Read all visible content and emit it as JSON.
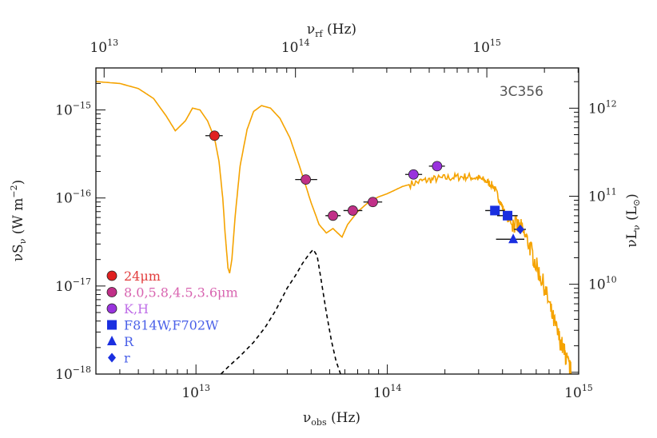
{
  "chart_data": {
    "type": "scatter",
    "object_label": "3C356",
    "x_bottom": {
      "label_prefix": "ν",
      "label_sub": "obs",
      "label_suffix": " (Hz)",
      "scale": "log",
      "range": [
        3000000000000.0,
        1000000000000000.0
      ],
      "ticks": [
        {
          "base": "10",
          "exp": "13",
          "value": 10000000000000.0
        },
        {
          "base": "10",
          "exp": "14",
          "value": 100000000000000.0
        },
        {
          "base": "10",
          "exp": "15",
          "value": 1000000000000000.0
        }
      ]
    },
    "x_top": {
      "label_prefix": "ν",
      "label_sub": "rf",
      "label_suffix": " (Hz)",
      "scale": "log",
      "ticks": [
        {
          "base": "10",
          "exp": "13",
          "value": 10000000000000.0
        },
        {
          "base": "10",
          "exp": "14",
          "value": 100000000000000.0
        },
        {
          "base": "10",
          "exp": "15",
          "value": 1000000000000000.0
        }
      ]
    },
    "y_left": {
      "label_prefix": "νS",
      "label_sub": "ν",
      "label_suffix": " (W m",
      "label_sup": "−2",
      "label_end": ")",
      "scale": "log",
      "range": [
        1e-18,
        3e-15
      ],
      "ticks": [
        {
          "base": "10",
          "exp": "−15",
          "value": 1e-15
        },
        {
          "base": "10",
          "exp": "−16",
          "value": 1e-16
        },
        {
          "base": "10",
          "exp": "−17",
          "value": 1e-17
        },
        {
          "base": "10",
          "exp": "−18",
          "value": 1e-18
        }
      ]
    },
    "y_right": {
      "label_prefix": "νL",
      "label_sub": "ν",
      "label_suffix": " (L",
      "label_sym": "⊙",
      "label_end": ")",
      "scale": "log",
      "ticks": [
        {
          "base": "10",
          "exp": "12",
          "value": 1000000000000.0
        },
        {
          "base": "10",
          "exp": "11",
          "value": 100000000000.0
        },
        {
          "base": "10",
          "exp": "10",
          "value": 10000000000.0
        }
      ]
    },
    "legend": [
      {
        "label": "24μm",
        "marker": "circle",
        "color": "#e02020"
      },
      {
        "label": "8.0,5.8,4.5,3.6μm",
        "marker": "circle",
        "color": "#c03088"
      },
      {
        "label": "K,H",
        "marker": "circle",
        "color": "#9933dd"
      },
      {
        "label": "F814W,F702W",
        "marker": "square",
        "color": "#1a2fe0"
      },
      {
        "label": "R",
        "marker": "triangle",
        "color": "#1a2fe0"
      },
      {
        "label": "r",
        "marker": "diamond",
        "color": "#1a2fe0"
      }
    ],
    "legend_text_colors": [
      "#e23c3c",
      "#d864b0",
      "#c070e8",
      "#4a60e8",
      "#4a60e8",
      "#4a60e8"
    ],
    "series": [
      {
        "name": "24μm",
        "marker": "circle",
        "color": "#e02020",
        "points": [
          {
            "x": 12500000000000.0,
            "y": 5.1e-16,
            "xerr": [
              11200000000000.0,
              13800000000000.0
            ]
          }
        ]
      },
      {
        "name": "8.0,5.8,4.5,3.6μm",
        "marker": "circle",
        "color": "#c03088",
        "points": [
          {
            "x": 37500000000000.0,
            "y": 1.62e-16,
            "xerr": [
              33000000000000.0,
              43000000000000.0
            ]
          },
          {
            "x": 52000000000000.0,
            "y": 6.3e-17,
            "xerr": [
              47500000000000.0,
              57000000000000.0
            ]
          },
          {
            "x": 66000000000000.0,
            "y": 7.2e-17,
            "xerr": [
              59000000000000.0,
              74000000000000.0
            ]
          },
          {
            "x": 84000000000000.0,
            "y": 9e-17,
            "xerr": [
              75000000000000.0,
              94000000000000.0
            ]
          }
        ]
      },
      {
        "name": "K,H",
        "marker": "circle",
        "color": "#9933dd",
        "points": [
          {
            "x": 137000000000000.0,
            "y": 1.85e-16,
            "xerr": [
              124000000000000.0,
              152000000000000.0
            ]
          },
          {
            "x": 182000000000000.0,
            "y": 2.3e-16,
            "xerr": [
              165000000000000.0,
              200000000000000.0
            ]
          }
        ]
      },
      {
        "name": "F814W,F702W",
        "marker": "square",
        "color": "#1a2fe0",
        "points": [
          {
            "x": 365000000000000.0,
            "y": 7.2e-17,
            "xerr": [
              325000000000000.0,
              410000000000000.0
            ]
          },
          {
            "x": 425000000000000.0,
            "y": 6.3e-17,
            "xerr": [
              375000000000000.0,
              480000000000000.0
            ]
          }
        ]
      },
      {
        "name": "R",
        "marker": "triangle",
        "color": "#1a2fe0",
        "points": [
          {
            "x": 455000000000000.0,
            "y": 3.4e-17,
            "xerr": [
              370000000000000.0,
              520000000000000.0
            ]
          }
        ]
      },
      {
        "name": "r",
        "marker": "diamond",
        "color": "#1a2fe0",
        "points": [
          {
            "x": 495000000000000.0,
            "y": 4.4e-17,
            "xerr": [
              460000000000000.0,
              530000000000000.0
            ]
          }
        ]
      }
    ],
    "model_total": {
      "color": "#f5a300",
      "points": [
        [
          3000000000000.0,
          2.1e-15
        ],
        [
          4000000000000.0,
          2e-15
        ],
        [
          5000000000000.0,
          1.75e-15
        ],
        [
          6000000000000.0,
          1.35e-15
        ],
        [
          7000000000000.0,
          8.5e-16
        ],
        [
          7800000000000.0,
          5.8e-16
        ],
        [
          8800000000000.0,
          7.5e-16
        ],
        [
          9600000000000.0,
          1.05e-15
        ],
        [
          10500000000000.0,
          1e-15
        ],
        [
          11500000000000.0,
          7.5e-16
        ],
        [
          12500000000000.0,
          4.8e-16
        ],
        [
          13200000000000.0,
          2.6e-16
        ],
        [
          13800000000000.0,
          1e-16
        ],
        [
          14200000000000.0,
          4e-17
        ],
        [
          14700000000000.0,
          1.6e-17
        ],
        [
          15000000000000.0,
          1.4e-17
        ],
        [
          15400000000000.0,
          2e-17
        ],
        [
          16000000000000.0,
          6e-17
        ],
        [
          17000000000000.0,
          2.3e-16
        ],
        [
          18500000000000.0,
          6e-16
        ],
        [
          20000000000000.0,
          9.6e-16
        ],
        [
          22000000000000.0,
          1.12e-15
        ],
        [
          24500000000000.0,
          1.05e-15
        ],
        [
          27500000000000.0,
          8e-16
        ],
        [
          31000000000000.0,
          4.8e-16
        ],
        [
          35000000000000.0,
          2.2e-16
        ],
        [
          40000000000000.0,
          8.8e-17
        ],
        [
          44000000000000.0,
          5e-17
        ],
        [
          48000000000000.0,
          4e-17
        ],
        [
          52000000000000.0,
          4.5e-17
        ],
        [
          55000000000000.0,
          4e-17
        ],
        [
          58000000000000.0,
          3.6e-17
        ],
        [
          62000000000000.0,
          5e-17
        ],
        [
          70000000000000.0,
          7e-17
        ],
        [
          80000000000000.0,
          9e-17
        ],
        [
          90000000000000.0,
          1.03e-16
        ],
        [
          100000000000000.0,
          1.12e-16
        ],
        [
          120000000000000.0,
          1.35e-16
        ],
        [
          150000000000000.0,
          1.55e-16
        ],
        [
          180000000000000.0,
          1.65e-16
        ],
        [
          220000000000000.0,
          1.72e-16
        ],
        [
          260000000000000.0,
          1.75e-16
        ],
        [
          300000000000000.0,
          1.68e-16
        ],
        [
          330000000000000.0,
          1.55e-16
        ],
        [
          360000000000000.0,
          1.35e-16
        ],
        [
          390000000000000.0,
          9e-17
        ],
        [
          420000000000000.0,
          6e-17
        ],
        [
          460000000000000.0,
          5e-17
        ],
        [
          500000000000000.0,
          4.5e-17
        ],
        [
          550000000000000.0,
          3e-17
        ],
        [
          600000000000000.0,
          1.7e-17
        ],
        [
          660000000000000.0,
          1e-17
        ],
        [
          720000000000000.0,
          5e-18
        ],
        [
          780000000000000.0,
          2.8e-18
        ],
        [
          840000000000000.0,
          1.8e-18
        ],
        [
          880000000000000.0,
          1.3e-18
        ],
        [
          920000000000000.0,
          1e-18
        ]
      ]
    },
    "model_component": {
      "color": "#000000",
      "style": "dashed",
      "points": [
        [
          13500000000000.0,
          1e-18
        ],
        [
          15000000000000.0,
          1.25e-18
        ],
        [
          17000000000000.0,
          1.6e-18
        ],
        [
          20000000000000.0,
          2.3e-18
        ],
        [
          23000000000000.0,
          3.4e-18
        ],
        [
          26000000000000.0,
          5.2e-18
        ],
        [
          30000000000000.0,
          9.5e-18
        ],
        [
          33000000000000.0,
          1.3e-17
        ],
        [
          36000000000000.0,
          1.8e-17
        ],
        [
          39000000000000.0,
          2.3e-17
        ],
        [
          41000000000000.0,
          2.6e-17
        ],
        [
          43000000000000.0,
          2.2e-17
        ],
        [
          45000000000000.0,
          1.2e-17
        ],
        [
          48000000000000.0,
          5e-18
        ],
        [
          51000000000000.0,
          2.4e-18
        ],
        [
          54000000000000.0,
          1.4e-18
        ],
        [
          57000000000000.0,
          1e-18
        ]
      ]
    }
  }
}
